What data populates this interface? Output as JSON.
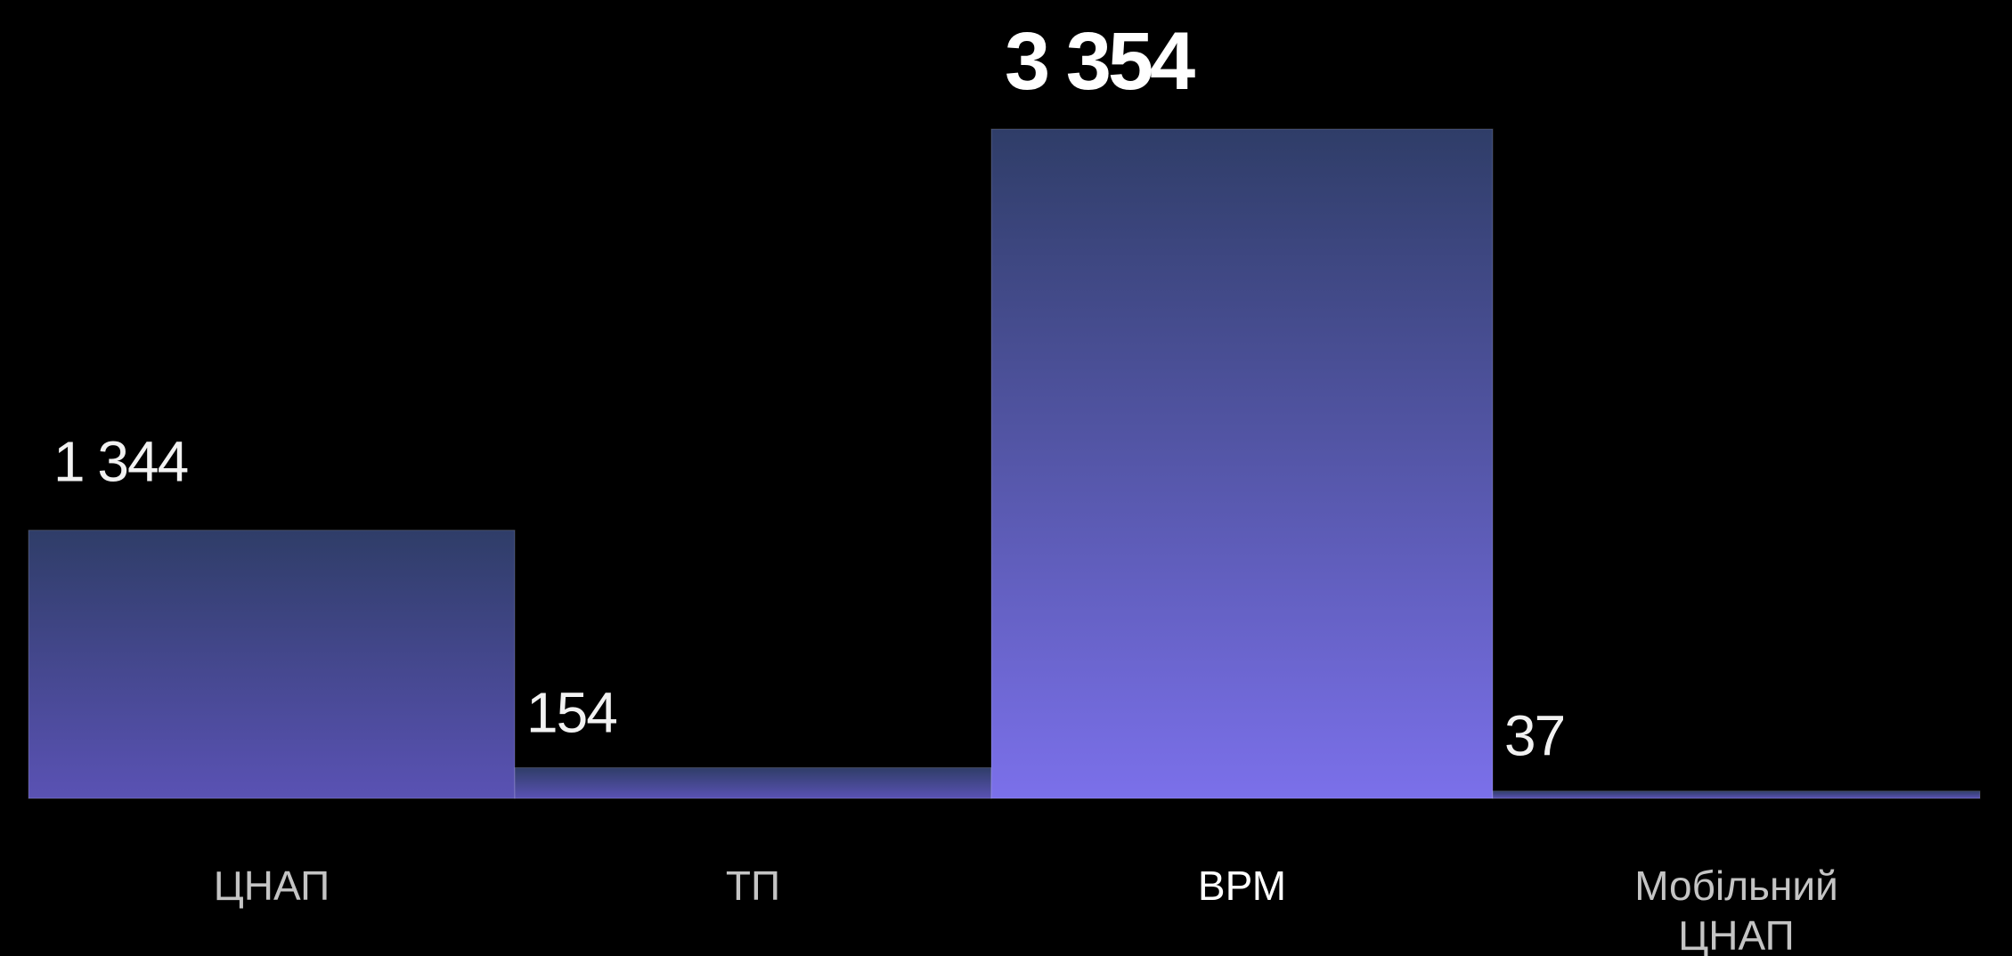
{
  "chart_data": {
    "type": "bar",
    "categories": [
      "ЦНАП",
      "ТП",
      "ВРМ",
      "Мобільний ЦНАП"
    ],
    "category_lines": [
      [
        "ЦНАП"
      ],
      [
        "ТП"
      ],
      [
        "ВРМ"
      ],
      [
        "Мобільний",
        "ЦНАП"
      ]
    ],
    "values": [
      1344,
      154,
      3354,
      37
    ],
    "value_labels": [
      "1 344",
      "154",
      "3 354",
      "37"
    ],
    "highlight_index": 2,
    "ylim": [
      0,
      3354
    ],
    "grid": false,
    "legend": "none",
    "colors": {
      "background": "#000000",
      "bar_top": "#2f3d68",
      "bar_bottom_low": "#5a52b4",
      "bar_bottom_high": "#7b70ea",
      "label": "#c4c4c4",
      "value": "#f2f2f2"
    }
  }
}
